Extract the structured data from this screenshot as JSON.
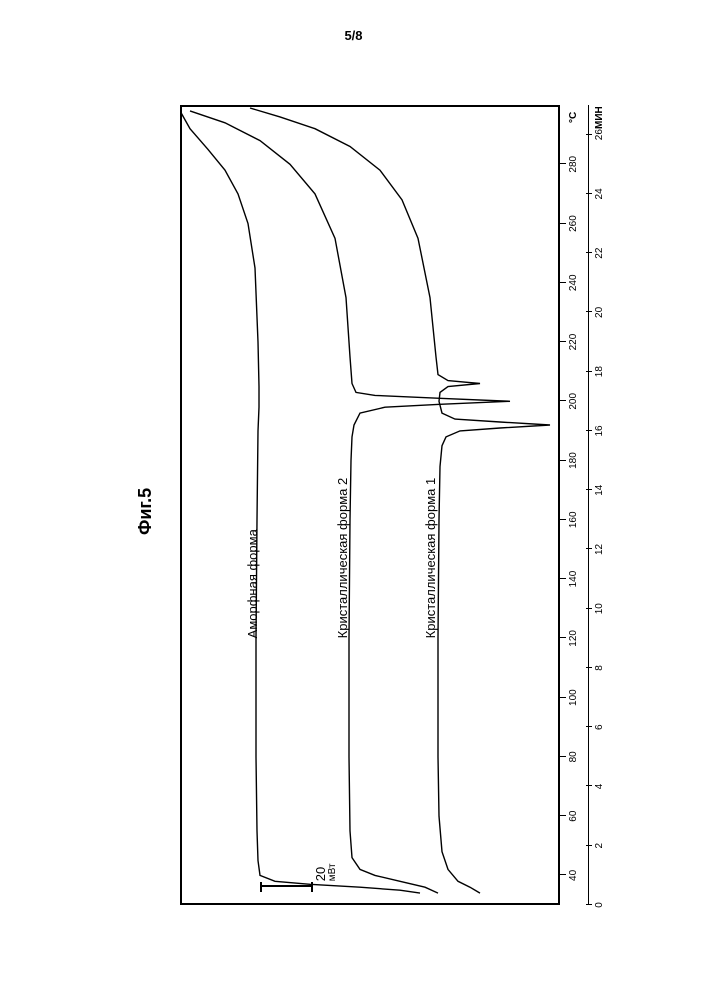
{
  "page_number": "5/8",
  "figure_title": "Фиг.5",
  "chart": {
    "type": "line",
    "background_color": "#ffffff",
    "line_color": "#000000",
    "line_width": 1.4,
    "border_color": "#000000",
    "font_family": "Arial",
    "label_fontsize": 13,
    "tick_fontsize": 10,
    "axis_temp": {
      "ticks": [
        40,
        60,
        80,
        100,
        120,
        140,
        160,
        180,
        200,
        220,
        240,
        260,
        280
      ],
      "unit": "°C",
      "xlim_min": 30,
      "xlim_max": 300
    },
    "axis_time": {
      "ticks": [
        0,
        2,
        4,
        6,
        8,
        10,
        12,
        14,
        16,
        18,
        20,
        22,
        24,
        26
      ],
      "unit": "МИН",
      "xlim_min": 0,
      "xlim_max": 27
    },
    "scale_bar": {
      "value": "20",
      "unit": "мВт",
      "length_fraction": 0.14
    },
    "curves": [
      {
        "label": "Аморфная форма",
        "label_x": 120,
        "label_y": 65,
        "points": [
          [
            34,
            240
          ],
          [
            35,
            220
          ],
          [
            36,
            180
          ],
          [
            37,
            130
          ],
          [
            38,
            95
          ],
          [
            40,
            80
          ],
          [
            45,
            78
          ],
          [
            55,
            77
          ],
          [
            80,
            76
          ],
          [
            120,
            76
          ],
          [
            160,
            77
          ],
          [
            190,
            78
          ],
          [
            198,
            79
          ],
          [
            202,
            79
          ],
          [
            205,
            79
          ],
          [
            220,
            78
          ],
          [
            245,
            75
          ],
          [
            260,
            68
          ],
          [
            270,
            58
          ],
          [
            278,
            45
          ],
          [
            285,
            28
          ],
          [
            292,
            10
          ],
          [
            298,
            0
          ]
        ]
      },
      {
        "label": "Кристаллическая форма 2",
        "label_x": 120,
        "label_y": 155,
        "points": [
          [
            34,
            258
          ],
          [
            36,
            245
          ],
          [
            38,
            220
          ],
          [
            40,
            195
          ],
          [
            42,
            180
          ],
          [
            46,
            172
          ],
          [
            55,
            170
          ],
          [
            80,
            169
          ],
          [
            120,
            169
          ],
          [
            160,
            170
          ],
          [
            180,
            171
          ],
          [
            188,
            172
          ],
          [
            192,
            174
          ],
          [
            196,
            180
          ],
          [
            198,
            205
          ],
          [
            199,
            260
          ],
          [
            200,
            330
          ],
          [
            201,
            260
          ],
          [
            202,
            195
          ],
          [
            203,
            176
          ],
          [
            206,
            172
          ],
          [
            215,
            170
          ],
          [
            235,
            166
          ],
          [
            255,
            155
          ],
          [
            270,
            135
          ],
          [
            280,
            110
          ],
          [
            288,
            80
          ],
          [
            294,
            45
          ],
          [
            298,
            10
          ]
        ]
      },
      {
        "label": "Кристаллическая форма 1",
        "label_x": 120,
        "label_y": 243,
        "points": [
          [
            34,
            300
          ],
          [
            36,
            290
          ],
          [
            38,
            278
          ],
          [
            42,
            268
          ],
          [
            48,
            262
          ],
          [
            60,
            259
          ],
          [
            80,
            258
          ],
          [
            120,
            258
          ],
          [
            160,
            259
          ],
          [
            178,
            260
          ],
          [
            185,
            262
          ],
          [
            188,
            266
          ],
          [
            190,
            280
          ],
          [
            191,
            320
          ],
          [
            192,
            370
          ],
          [
            193,
            320
          ],
          [
            194,
            275
          ],
          [
            196,
            262
          ],
          [
            200,
            259
          ],
          [
            203,
            260
          ],
          [
            205,
            268
          ],
          [
            206,
            300
          ],
          [
            207,
            268
          ],
          [
            209,
            258
          ],
          [
            215,
            256
          ],
          [
            235,
            250
          ],
          [
            255,
            238
          ],
          [
            268,
            222
          ],
          [
            278,
            200
          ],
          [
            286,
            170
          ],
          [
            292,
            135
          ],
          [
            296,
            100
          ],
          [
            299,
            70
          ]
        ]
      }
    ]
  }
}
